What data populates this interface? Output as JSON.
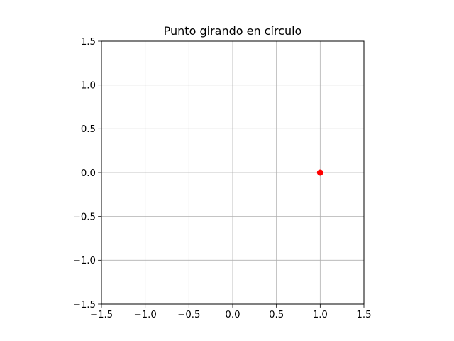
{
  "chart_data": {
    "type": "scatter",
    "title": "Punto girando en círculo",
    "xlabel": "",
    "ylabel": "",
    "xlim": [
      -1.5,
      1.5
    ],
    "ylim": [
      -1.5,
      1.5
    ],
    "xticks": [
      -1.5,
      -1.0,
      -0.5,
      0.0,
      0.5,
      1.0,
      1.5
    ],
    "yticks": [
      -1.5,
      -1.0,
      -0.5,
      0.0,
      0.5,
      1.0,
      1.5
    ],
    "xtick_labels": [
      "−1.5",
      "−1.0",
      "−0.5",
      "0.0",
      "0.5",
      "1.0",
      "1.5"
    ],
    "ytick_labels": [
      "−1.5",
      "−1.0",
      "−0.5",
      "0.0",
      "0.5",
      "1.0",
      "1.5"
    ],
    "grid": true,
    "aspect": "equal",
    "points": [
      {
        "x": 1.0,
        "y": 0.0
      }
    ],
    "colors": {
      "point": "#ff0000",
      "grid": "#b0b0b0",
      "axes": "#000000"
    }
  }
}
